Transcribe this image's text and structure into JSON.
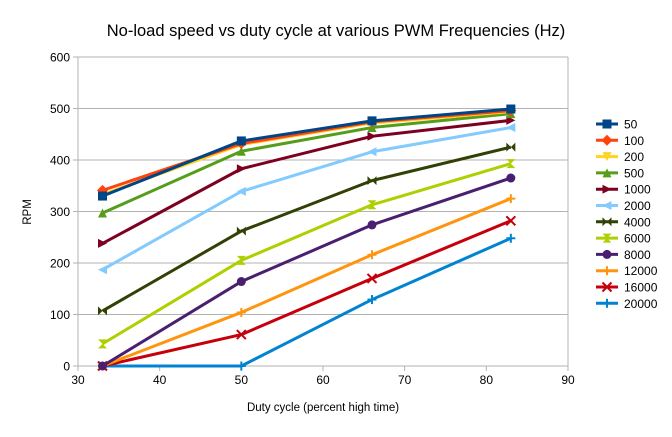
{
  "chart_data": {
    "type": "line",
    "title": "No-load speed vs duty cycle at various PWM Frequencies (Hz)",
    "xlabel": "Duty cycle (percent high time)",
    "ylabel": "RPM",
    "xlim": [
      30,
      90
    ],
    "ylim": [
      0,
      600
    ],
    "xticks": [
      30,
      40,
      50,
      60,
      70,
      80,
      90
    ],
    "yticks": [
      0,
      100,
      200,
      300,
      400,
      500,
      600
    ],
    "grid": "horizontal",
    "legend_position": "right",
    "x": [
      33,
      50,
      66,
      83
    ],
    "series": [
      {
        "name": "50",
        "color": "#004586",
        "marker": "square",
        "values": [
          330,
          437,
          476,
          499
        ]
      },
      {
        "name": "100",
        "color": "#ff420e",
        "marker": "diamond",
        "values": [
          341,
          432,
          474,
          496
        ]
      },
      {
        "name": "200",
        "color": "#ffd320",
        "marker": "triangle-down",
        "values": [
          333,
          430,
          472,
          494
        ]
      },
      {
        "name": "500",
        "color": "#579d1c",
        "marker": "triangle-up",
        "values": [
          297,
          417,
          463,
          490
        ]
      },
      {
        "name": "1000",
        "color": "#7e0021",
        "marker": "triangle-right",
        "values": [
          238,
          383,
          446,
          477
        ]
      },
      {
        "name": "2000",
        "color": "#83caff",
        "marker": "triangle-left",
        "values": [
          187,
          339,
          416,
          463
        ]
      },
      {
        "name": "4000",
        "color": "#314004",
        "marker": "bowtie",
        "values": [
          107,
          262,
          360,
          425
        ]
      },
      {
        "name": "6000",
        "color": "#aecf00",
        "marker": "hourglass",
        "values": [
          43,
          205,
          313,
          393
        ]
      },
      {
        "name": "8000",
        "color": "#4b1f6f",
        "marker": "circle",
        "values": [
          0,
          164,
          274,
          365
        ]
      },
      {
        "name": "12000",
        "color": "#ff950e",
        "marker": "plus",
        "values": [
          0,
          104,
          216,
          325
        ]
      },
      {
        "name": "16000",
        "color": "#c5000b",
        "marker": "x",
        "values": [
          0,
          61,
          170,
          282
        ]
      },
      {
        "name": "20000",
        "color": "#0084d1",
        "marker": "cross",
        "values": [
          0,
          0,
          129,
          248
        ]
      }
    ]
  }
}
